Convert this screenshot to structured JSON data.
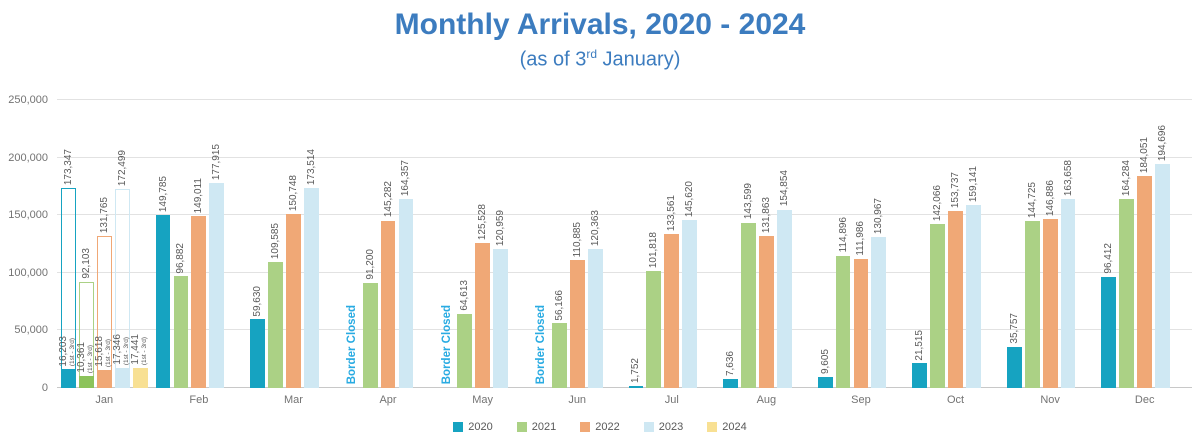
{
  "title": "Monthly Arrivals, 2020 - 2024",
  "subtitle": {
    "pre": "(as of 3",
    "sup": "rd",
    "post": " January)"
  },
  "palette": {
    "title_blue": "#3C7CBF",
    "border_closed_blue": "#29ABE2",
    "value_label_gray": "#595959",
    "axis_gray": "#737373"
  },
  "chart_data": {
    "type": "bar",
    "title": "Monthly Arrivals, 2020 - 2024",
    "subtitle": "(as of 3rd January)",
    "categories": [
      "Jan",
      "Feb",
      "Mar",
      "Apr",
      "May",
      "Jun",
      "Jul",
      "Aug",
      "Sep",
      "Oct",
      "Nov",
      "Dec"
    ],
    "ylim": [
      0,
      250000
    ],
    "ytick_step": 50000,
    "ytick_labels": [
      "0",
      "50,000",
      "100,000",
      "150,000",
      "200,000",
      "250,000"
    ],
    "grid": true,
    "legend_position": "bottom",
    "jan_note": "Solid Jan bars show arrivals for 1st - 3rd; outlined Jan bars show the full-month totals",
    "series": [
      {
        "name": "2020",
        "color": "#16A3C1",
        "values": [
          16203,
          149785,
          59630,
          null,
          null,
          null,
          1752,
          7636,
          9605,
          21515,
          35757,
          96412
        ],
        "jan_outline_total": 173347,
        "jan_sublabel": "(1st - 3rd)",
        "notes": [
          null,
          null,
          null,
          "Border Closed",
          "Border Closed",
          "Border Closed",
          null,
          null,
          null,
          null,
          null,
          null
        ]
      },
      {
        "name": "2021",
        "color": "#ABD185",
        "jan_color": "#8CC35B",
        "values": [
          10361,
          96882,
          109585,
          91200,
          64613,
          56166,
          101818,
          143599,
          114896,
          142066,
          144725,
          164284
        ],
        "jan_outline_total": 92103,
        "jan_sublabel": "(1st - 3rd)",
        "notes": null
      },
      {
        "name": "2022",
        "color": "#F0A876",
        "values": [
          15618,
          149011,
          150748,
          145282,
          125528,
          110885,
          133561,
          131863,
          111986,
          153737,
          146886,
          184051
        ],
        "jan_outline_total": 131765,
        "jan_sublabel": "(1st - 3rd)",
        "notes": null
      },
      {
        "name": "2023",
        "color": "#CFE8F3",
        "values": [
          17346,
          177915,
          173514,
          164357,
          120959,
          120363,
          145620,
          154854,
          130967,
          159141,
          163658,
          194696
        ],
        "jan_outline_total": 172499,
        "jan_sublabel": "(1st - 3rd)",
        "notes": null
      },
      {
        "name": "2024",
        "color": "#F8E093",
        "values": [
          17441,
          null,
          null,
          null,
          null,
          null,
          null,
          null,
          null,
          null,
          null,
          null
        ],
        "jan_outline_total": null,
        "jan_sublabel": "(1st - 3rd)",
        "notes": null
      }
    ]
  }
}
